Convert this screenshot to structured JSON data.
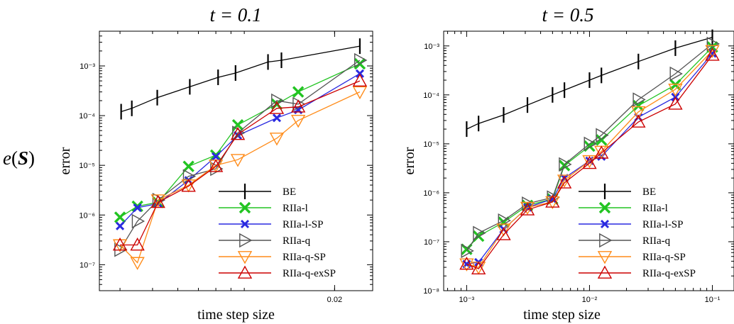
{
  "row_label": "e(S)",
  "legend": [
    {
      "name": "BE",
      "color": "#000000",
      "marker": "bar"
    },
    {
      "name": "RIIa-l",
      "color": "#22c422",
      "marker": "X"
    },
    {
      "name": "RIIa-l-SP",
      "color": "#2a2ae0",
      "marker": "x"
    },
    {
      "name": "RIIa-q",
      "color": "#555555",
      "marker": "tri-right"
    },
    {
      "name": "RIIa-q-SP",
      "color": "#ff8c1a",
      "marker": "tri-down"
    },
    {
      "name": "RIIa-q-exSP",
      "color": "#cc0000",
      "marker": "tri-up"
    }
  ],
  "chart_data": [
    {
      "type": "line",
      "title": "t = 0.1",
      "xlabel": "time step size",
      "ylabel": "error",
      "xscale": "log",
      "yscale": "log",
      "xlim": [
        0.0025,
        0.028
      ],
      "ylim": [
        3e-08,
        0.005
      ],
      "x_ticks": [
        {
          "value": 0.02,
          "label": "0.02"
        }
      ],
      "y_ticks": [
        {
          "value": 1e-07,
          "label": "10⁻⁷"
        },
        {
          "value": 1e-06,
          "label": "10⁻⁶"
        },
        {
          "value": 1e-05,
          "label": "10⁻⁵"
        },
        {
          "value": 0.0001,
          "label": "10⁻⁴"
        },
        {
          "value": 0.001,
          "label": "10⁻³"
        }
      ],
      "legend_position": "bottom-right",
      "series": [
        {
          "name": "BE",
          "x": [
            0.00303,
            0.00333,
            0.00417,
            0.00556,
            0.00714,
            0.00833,
            0.0111,
            0.0125,
            0.025
          ],
          "y": [
            0.00012,
            0.00014,
            0.00023,
            0.00038,
            0.00059,
            0.00072,
            0.0012,
            0.0013,
            0.0025
          ]
        },
        {
          "name": "RIIa-l",
          "x": [
            0.003,
            0.0035,
            0.0042,
            0.0055,
            0.007,
            0.0085,
            0.012,
            0.0145,
            0.025
          ],
          "y": [
            9e-07,
            1.5e-06,
            1.8e-06,
            9.5e-06,
            1.6e-05,
            6.5e-05,
            0.00017,
            0.0003,
            0.0011
          ]
        },
        {
          "name": "RIIa-l-SP",
          "x": [
            0.003,
            0.0035,
            0.0042,
            0.0055,
            0.007,
            0.0085,
            0.012,
            0.0145,
            0.025
          ],
          "y": [
            6e-07,
            1.4e-06,
            1.7e-06,
            5e-06,
            1.5e-05,
            4e-05,
            9e-05,
            0.00013,
            0.0007
          ]
        },
        {
          "name": "RIIa-q",
          "x": [
            0.003,
            0.0035,
            0.0042,
            0.0055,
            0.007,
            0.0085,
            0.012,
            0.0145,
            0.025
          ],
          "y": [
            2e-07,
            7.5e-07,
            2e-06,
            6e-06,
            8.5e-06,
            4.5e-05,
            0.0002,
            0.00017,
            0.0013
          ]
        },
        {
          "name": "RIIa-q-SP",
          "x": [
            0.003,
            0.0035,
            0.0042,
            0.0055,
            0.007,
            0.0085,
            0.012,
            0.0145,
            0.025
          ],
          "y": [
            2.5e-07,
            1.1e-07,
            2e-06,
            4e-06,
            1e-05,
            1.3e-05,
            3.5e-05,
            8e-05,
            0.0003
          ]
        },
        {
          "name": "RIIa-q-exSP",
          "x": [
            0.003,
            0.0035,
            0.0042,
            0.0055,
            0.007,
            0.0085,
            0.012,
            0.0145,
            0.025
          ],
          "y": [
            2.5e-07,
            2.5e-07,
            1.8e-06,
            3.8e-06,
            9.5e-06,
            4.2e-05,
            0.00014,
            0.00015,
            0.0005
          ]
        }
      ]
    },
    {
      "type": "line",
      "title": "t = 0.5",
      "xlabel": "time step size",
      "ylabel": "error",
      "xscale": "log",
      "yscale": "log",
      "xlim": [
        0.00065,
        0.15
      ],
      "ylim": [
        1e-08,
        0.002
      ],
      "x_ticks": [
        {
          "value": 0.001,
          "label": "10⁻³"
        },
        {
          "value": 0.01,
          "label": "10⁻²"
        },
        {
          "value": 0.1,
          "label": "10⁻¹"
        }
      ],
      "y_ticks": [
        {
          "value": 1e-08,
          "label": "10⁻⁸"
        },
        {
          "value": 1e-07,
          "label": "10⁻⁷"
        },
        {
          "value": 1e-06,
          "label": "10⁻⁶"
        },
        {
          "value": 1e-05,
          "label": "10⁻⁵"
        },
        {
          "value": 0.0001,
          "label": "10⁻⁴"
        },
        {
          "value": 0.001,
          "label": "10⁻³"
        }
      ],
      "legend_position": "bottom-right",
      "series": [
        {
          "name": "BE",
          "x": [
            0.001,
            0.00125,
            0.002,
            0.003125,
            0.005,
            0.00625,
            0.01,
            0.0125,
            0.025,
            0.05,
            0.1
          ],
          "y": [
            2e-05,
            2.6e-05,
            3.9e-05,
            6.2e-05,
            0.0001,
            0.000125,
            0.0002,
            0.00025,
            0.00048,
            0.0009,
            0.0015
          ]
        },
        {
          "name": "RIIa-l",
          "x": [
            0.001,
            0.00125,
            0.002,
            0.003125,
            0.005,
            0.00625,
            0.01,
            0.0125,
            0.025,
            0.05,
            0.1
          ],
          "y": [
            7e-08,
            1.3e-07,
            2.5e-07,
            5.5e-07,
            7.5e-07,
            3.6e-06,
            9e-06,
            1.2e-05,
            6e-05,
            0.00016,
            0.00095
          ]
        },
        {
          "name": "RIIa-l-SP",
          "x": [
            0.001,
            0.00125,
            0.002,
            0.003125,
            0.005,
            0.00625,
            0.01,
            0.0125,
            0.025,
            0.05,
            0.1
          ],
          "y": [
            3.5e-08,
            3.8e-08,
            1.8e-07,
            5e-07,
            7.5e-07,
            2e-06,
            4.5e-06,
            5.5e-06,
            3.5e-05,
            9e-05,
            0.0007
          ]
        },
        {
          "name": "RIIa-q",
          "x": [
            0.001,
            0.00125,
            0.002,
            0.003125,
            0.005,
            0.00625,
            0.01,
            0.0125,
            0.025,
            0.05,
            0.1
          ],
          "y": [
            6.5e-08,
            1.5e-07,
            2.7e-07,
            6e-07,
            8e-07,
            3.8e-06,
            1e-05,
            1.5e-05,
            8e-05,
            0.00027,
            0.0011
          ]
        },
        {
          "name": "RIIa-q-SP",
          "x": [
            0.001,
            0.00125,
            0.002,
            0.003125,
            0.005,
            0.00625,
            0.01,
            0.0125,
            0.025,
            0.05,
            0.1
          ],
          "y": [
            3.5e-08,
            3e-08,
            1.8e-07,
            5e-07,
            6.5e-07,
            1.8e-06,
            4.5e-06,
            7e-06,
            4.5e-05,
            0.00013,
            0.0008
          ]
        },
        {
          "name": "RIIa-q-exSP",
          "x": [
            0.001,
            0.00125,
            0.002,
            0.003125,
            0.005,
            0.00625,
            0.01,
            0.0125,
            0.025,
            0.05,
            0.1
          ],
          "y": [
            3.5e-08,
            2.8e-08,
            1.4e-07,
            4.5e-07,
            6.5e-07,
            1.6e-06,
            4e-06,
            6.5e-06,
            2.8e-05,
            6.5e-05,
            0.00065
          ]
        }
      ]
    }
  ]
}
